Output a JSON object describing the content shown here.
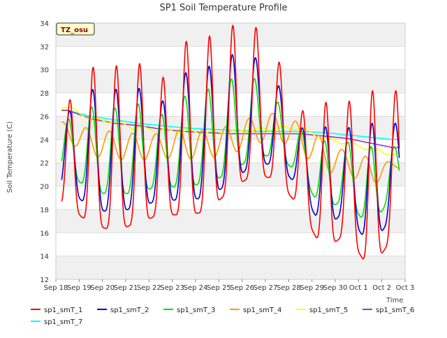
{
  "chart_data": {
    "type": "line",
    "title": "SP1 Soil Temperature Profile",
    "xlabel": "Time",
    "ylabel": "Soil Temperature (C)",
    "badge": "TZ_osu",
    "ylim": [
      12,
      34
    ],
    "yticks": [
      12,
      14,
      16,
      18,
      20,
      22,
      24,
      26,
      28,
      30,
      32,
      34
    ],
    "xlim": [
      "2023-09-18",
      "2023-10-03"
    ],
    "xtick_labels": [
      "Sep 18",
      "Sep 19",
      "Sep 20",
      "Sep 21",
      "Sep 22",
      "Sep 23",
      "Sep 24",
      "Sep 25",
      "Sep 26",
      "Sep 27",
      "Sep 28",
      "Sep 29",
      "Sep 30",
      "Oct 1",
      "Oct 2",
      "Oct 3"
    ],
    "grid": "horizontal bands",
    "legend_placement": "bottom",
    "x": [
      "2023-09-18 12:00",
      "2023-09-19 12:00",
      "2023-09-20 12:00",
      "2023-09-21 12:00",
      "2023-09-22 12:00",
      "2023-09-23 12:00",
      "2023-09-24 12:00",
      "2023-09-25 12:00",
      "2023-09-26 12:00",
      "2023-09-27 12:00",
      "2023-09-28 12:00",
      "2023-09-29 12:00",
      "2023-09-30 12:00",
      "2023-10-01 12:00",
      "2023-10-02 12:00"
    ],
    "series": [
      {
        "name": "sp1_smT_1",
        "color": "#ff0000",
        "min": [
          18.4,
          16.7,
          16.2,
          16.8,
          17.6,
          17.5,
          17.8,
          19.7,
          21.0,
          20.6,
          18.1,
          14.4,
          16.0,
          12.7,
          15.7
        ],
        "max": [
          27.1,
          30.2,
          30.3,
          30.7,
          29.0,
          32.4,
          32.8,
          33.8,
          33.9,
          31.1,
          26.4,
          27.2,
          27.2,
          28.2,
          28.2
        ]
      },
      {
        "name": "sp1_smT_2",
        "color": "#0000cc",
        "min": [
          19.8,
          18.1,
          17.7,
          18.2,
          18.8,
          18.8,
          19.0,
          20.3,
          21.9,
          21.9,
          19.8,
          16.2,
          18.0,
          14.6,
          17.6
        ],
        "max": [
          26.3,
          28.3,
          28.3,
          28.5,
          27.1,
          29.7,
          30.2,
          31.3,
          31.2,
          28.9,
          25.0,
          25.1,
          25.0,
          25.4,
          25.4
        ]
      },
      {
        "name": "sp1_smT_3",
        "color": "#00dd00",
        "min": [
          21.2,
          19.6,
          19.2,
          19.5,
          20.0,
          19.9,
          20.3,
          21.1,
          22.6,
          22.6,
          21.0,
          17.8,
          19.0,
          16.2,
          19.5
        ],
        "max": [
          25.7,
          26.8,
          26.7,
          27.1,
          26.1,
          27.7,
          28.3,
          29.2,
          29.3,
          27.3,
          24.8,
          23.9,
          23.8,
          23.4,
          23.4
        ]
      },
      {
        "name": "sp1_smT_4",
        "color": "#ff9900",
        "min": [
          23.8,
          22.6,
          22.3,
          22.2,
          22.4,
          22.3,
          22.4,
          22.7,
          23.6,
          24.0,
          22.9,
          21.2,
          21.1,
          19.8,
          21.5
        ],
        "max": [
          25.5,
          24.9,
          24.7,
          24.5,
          24.5,
          24.9,
          24.8,
          25.2,
          26.0,
          26.3,
          25.4,
          24.1,
          22.9,
          22.5,
          22.0
        ]
      },
      {
        "name": "sp1_smT_5",
        "color": "#ffff00",
        "values": [
          26.8,
          25.8,
          25.5,
          25.0,
          24.8,
          24.7,
          24.6,
          24.7,
          24.8,
          25.0,
          25.0,
          24.1,
          23.7,
          23.2,
          22.7
        ]
      },
      {
        "name": "sp1_smT_6",
        "color": "#9933cc",
        "values": [
          26.5,
          25.8,
          25.4,
          25.2,
          24.9,
          24.7,
          24.6,
          24.5,
          24.5,
          24.5,
          24.5,
          24.3,
          24.1,
          23.7,
          23.3
        ]
      },
      {
        "name": "sp1_smT_7",
        "color": "#00ffff",
        "values": [
          26.5,
          26.0,
          25.7,
          25.4,
          25.2,
          25.0,
          24.9,
          24.8,
          24.7,
          24.7,
          24.7,
          24.6,
          24.4,
          24.2,
          24.0
        ]
      }
    ]
  }
}
